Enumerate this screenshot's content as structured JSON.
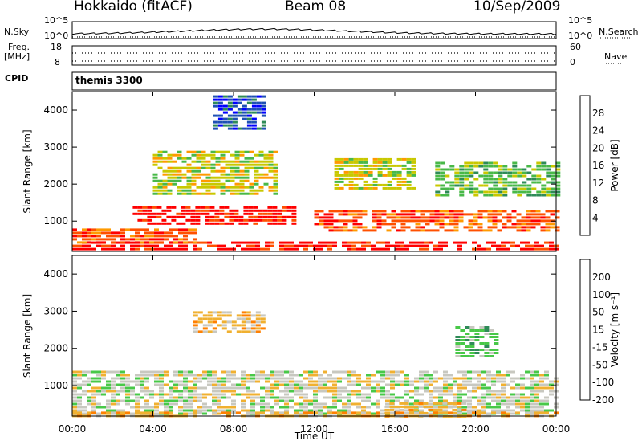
{
  "header": {
    "station": "Hokkaido (fitACF)",
    "beam": "Beam 08",
    "date": "10/Sep/2009"
  },
  "strip_labels": {
    "nsky": "N.Sky",
    "nsky_top": "10^5",
    "nsky_bottom": "10^0",
    "nsearch": "N.Search",
    "freq": "Freq.",
    "freq_unit": "[MHz]",
    "freq_top": "18",
    "freq_bottom": "8",
    "nave": "Nave",
    "nave_top": "60",
    "nave_bottom": "0",
    "cpid": "CPID",
    "cpid_text": "themis 3300"
  },
  "chart_data": [
    {
      "type": "heatmap",
      "name": "power",
      "ylabel": "Slant Range [km]",
      "ylim": [
        180,
        4500
      ],
      "yticks": [
        "1000",
        "2000",
        "3000",
        "4000"
      ],
      "xlim": [
        0,
        24
      ],
      "colorbar_label": "Power [dB]",
      "colorbar_ticks": [
        "4",
        "8",
        "12",
        "16",
        "20",
        "24",
        "28"
      ],
      "colors": [
        "#0000ff",
        "#1e50b4",
        "#2e8b57",
        "#48b848",
        "#c8c800",
        "#ff9a00",
        "#ff5000",
        "#ff0000"
      ],
      "echo_regions": [
        {
          "t": [
            0,
            24
          ],
          "r": [
            200,
            450
          ],
          "level": 7
        },
        {
          "t": [
            0,
            6
          ],
          "r": [
            450,
            800
          ],
          "level": 6
        },
        {
          "t": [
            3,
            11
          ],
          "r": [
            900,
            1400
          ],
          "level": 7
        },
        {
          "t": [
            12,
            24
          ],
          "r": [
            700,
            1300
          ],
          "level": 6
        },
        {
          "t": [
            4,
            10
          ],
          "r": [
            1700,
            2900
          ],
          "level": 4
        },
        {
          "t": [
            13,
            17
          ],
          "r": [
            1900,
            2700
          ],
          "level": 4
        },
        {
          "t": [
            18,
            24
          ],
          "r": [
            1700,
            2600
          ],
          "level": 3
        },
        {
          "t": [
            7,
            9.5
          ],
          "r": [
            3500,
            4400
          ],
          "level": 1
        }
      ]
    },
    {
      "type": "heatmap",
      "name": "velocity",
      "ylabel": "Slant Range [km]",
      "ylim": [
        180,
        4500
      ],
      "yticks": [
        "1000",
        "2000",
        "3000",
        "4000"
      ],
      "xlim": [
        0,
        24
      ],
      "xticks": [
        "00:00",
        "04:00",
        "08:00",
        "12:00",
        "16:00",
        "20:00",
        "00:00"
      ],
      "xlabel": "Time UT",
      "colorbar_label": "Velocity [m s⁻¹]",
      "colorbar_ticks": [
        "200",
        "100",
        "50",
        "15",
        "-15",
        "-50",
        "-100",
        "-200"
      ],
      "colors": [
        "#1e3cc8",
        "#2e8b57",
        "#48c848",
        "#c8c8c0",
        "#f0b030",
        "#ff8000",
        "#ff4000",
        "#ff0000"
      ],
      "echo_regions": [
        {
          "t": [
            0,
            24
          ],
          "r": [
            200,
            1400
          ],
          "level": 3
        },
        {
          "t": [
            6,
            9.5
          ],
          "r": [
            2400,
            3000
          ],
          "level": 4
        },
        {
          "t": [
            19,
            21
          ],
          "r": [
            1800,
            2600
          ],
          "level": 2
        },
        {
          "t": [
            15.5,
            19.5
          ],
          "r": [
            200,
            550
          ],
          "level": 4
        },
        {
          "t": [
            0,
            24
          ],
          "r": [
            200,
            300
          ],
          "level": 4
        }
      ]
    }
  ]
}
